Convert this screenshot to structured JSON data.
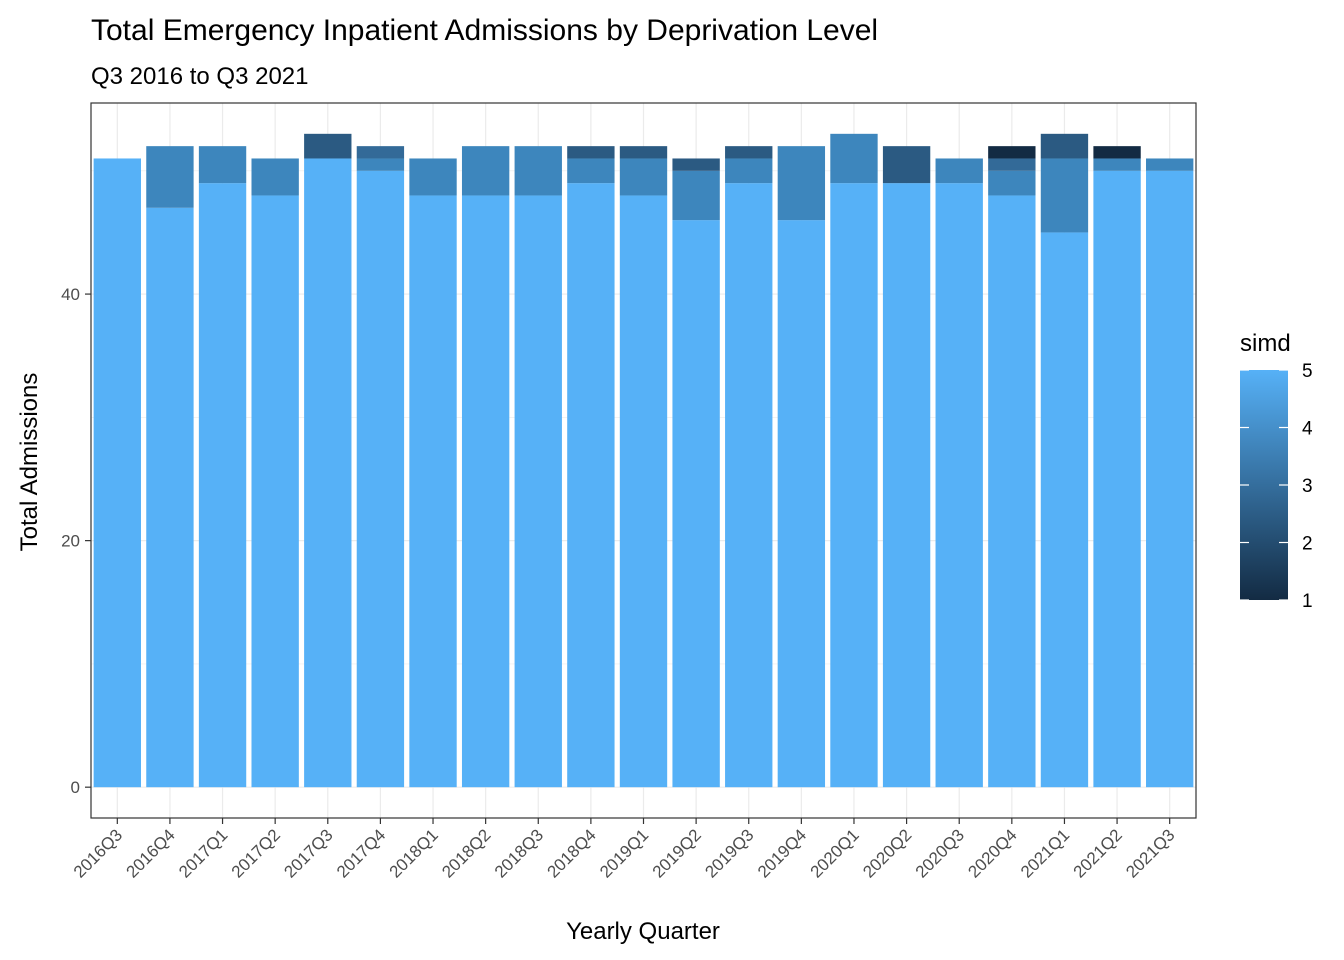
{
  "chart_data": {
    "type": "bar",
    "stacked": true,
    "title": "Total Emergency Inpatient Admissions by Deprivation Level",
    "subtitle": "Q3 2016 to Q3 2021",
    "xlabel": "Yearly Quarter",
    "ylabel": "Total Admissions",
    "ylim": [
      -2.5,
      55.5
    ],
    "yticks": [
      0,
      20,
      40
    ],
    "grid": true,
    "legend": {
      "title": "simd",
      "placement": "right",
      "labels": [
        "5",
        "4",
        "3",
        "2",
        "1"
      ],
      "range": [
        1,
        5
      ],
      "color_low": "#132b43",
      "color_high": "#56b1f7"
    },
    "categories": [
      "2016Q3",
      "2016Q4",
      "2017Q1",
      "2017Q2",
      "2017Q3",
      "2017Q4",
      "2018Q1",
      "2018Q2",
      "2018Q3",
      "2018Q4",
      "2019Q1",
      "2019Q2",
      "2019Q3",
      "2019Q4",
      "2020Q1",
      "2020Q2",
      "2020Q3",
      "2020Q4",
      "2021Q1",
      "2021Q2",
      "2021Q3"
    ],
    "series": [
      {
        "simd": 5,
        "color": "#56b1f7",
        "values": [
          51,
          47,
          49,
          48,
          51,
          50,
          48,
          48,
          48,
          49,
          48,
          46,
          49,
          46,
          49,
          49,
          49,
          48,
          45,
          50,
          50
        ]
      },
      {
        "simd": 4,
        "color": "#3d86bd",
        "values": [
          0,
          5,
          3,
          3,
          0,
          1,
          3,
          4,
          4,
          2,
          3,
          4,
          2,
          6,
          4,
          0,
          2,
          2,
          6,
          1,
          1
        ]
      },
      {
        "simd": 3,
        "color": "#336a98",
        "values": [
          0,
          0,
          0,
          0,
          0,
          1,
          0,
          0,
          0,
          0,
          0,
          0,
          0,
          0,
          0,
          0,
          0,
          1,
          0,
          0,
          0
        ]
      },
      {
        "simd": 2,
        "color": "#2b5a82",
        "values": [
          0,
          0,
          0,
          0,
          2,
          0,
          0,
          0,
          0,
          1,
          1,
          1,
          1,
          0,
          0,
          3,
          0,
          0,
          2,
          0,
          0
        ]
      },
      {
        "simd": 1,
        "color": "#132b43",
        "values": [
          0,
          0,
          0,
          0,
          0,
          0,
          0,
          0,
          0,
          0,
          0,
          0,
          0,
          0,
          0,
          0,
          0,
          1,
          0,
          1,
          0
        ]
      }
    ]
  }
}
